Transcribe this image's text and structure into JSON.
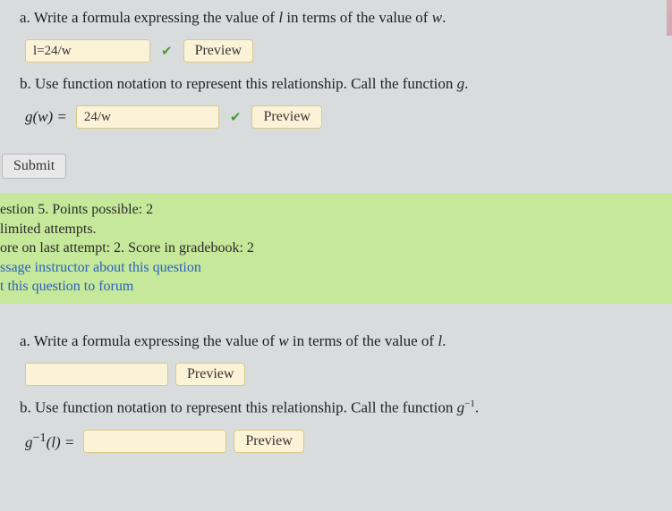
{
  "partA1": {
    "prompt_prefix": "a. Write a formula expressing the value of ",
    "var1": "l",
    "prompt_mid": " in terms of the value of ",
    "var2": "w",
    "prompt_suffix": ".",
    "input_value": "l=24/w",
    "preview": "Preview"
  },
  "partB1": {
    "prompt_prefix": "b. Use function notation to represent this relationship. Call the function ",
    "fn": "g",
    "prompt_suffix": ".",
    "label": "g(w) =",
    "input_value": "24/w",
    "preview": "Preview"
  },
  "submit": {
    "label": "Submit"
  },
  "info": {
    "line1": "estion 5. Points possible: 2",
    "line2": "limited attempts.",
    "line3": "ore on last attempt: 2. Score in gradebook: 2",
    "link1": "ssage instructor about this question",
    "link2": "t this question to forum"
  },
  "partA2": {
    "prompt_prefix": "a. Write a formula expressing the value of ",
    "var1": "w",
    "prompt_mid": " in terms of the value of ",
    "var2": "l",
    "prompt_suffix": ".",
    "input_value": "",
    "preview": "Preview"
  },
  "partB2": {
    "prompt_prefix": "b. Use function notation to represent this relationship. Call the function ",
    "fn": "g",
    "exp": "−1",
    "prompt_suffix": ".",
    "label_left": "g",
    "label_exp": "−1",
    "label_right": "(l) =",
    "input_value": "",
    "preview": "Preview"
  }
}
